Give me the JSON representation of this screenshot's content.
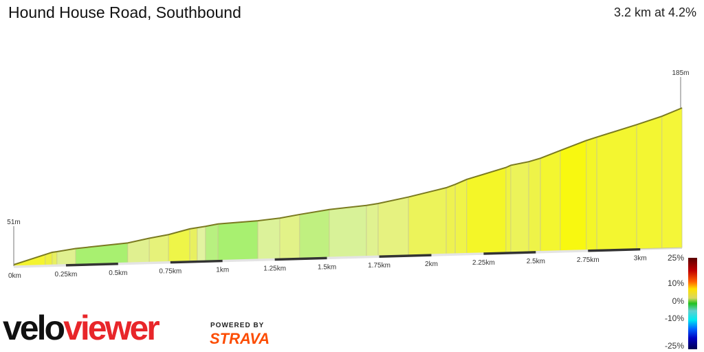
{
  "header": {
    "title": "Hound House Road, Southbound",
    "summary": "3.2 km at 4.2%"
  },
  "chart_data": {
    "type": "area",
    "title": "Hound House Road, Southbound",
    "xlabel": "",
    "ylabel": "",
    "xlim": [
      0,
      3.2
    ],
    "ylim": [
      51,
      185
    ],
    "start_label": "51m",
    "end_label": "185m",
    "x_ticks": [
      {
        "v": 0,
        "label": "0km"
      },
      {
        "v": 0.25,
        "label": "0.25km"
      },
      {
        "v": 0.5,
        "label": "0.5km"
      },
      {
        "v": 0.75,
        "label": "0.75km"
      },
      {
        "v": 1,
        "label": "1km"
      },
      {
        "v": 1.25,
        "label": "1.25km"
      },
      {
        "v": 1.5,
        "label": "1.5km"
      },
      {
        "v": 1.75,
        "label": "1.75km"
      },
      {
        "v": 2,
        "label": "2km"
      },
      {
        "v": 2.25,
        "label": "2.25km"
      },
      {
        "v": 2.5,
        "label": "2.5km"
      },
      {
        "v": 2.75,
        "label": "2.75km"
      },
      {
        "v": 3,
        "label": "3km"
      }
    ],
    "points_km": [
      0,
      0.151,
      0.184,
      0.207,
      0.296,
      0.546,
      0.649,
      0.741,
      0.843,
      0.879,
      0.918,
      0.978,
      1.169,
      1.274,
      1.369,
      1.511,
      1.689,
      1.745,
      1.89,
      2.071,
      2.114,
      2.169,
      2.357,
      2.38,
      2.466,
      2.522,
      2.617,
      2.742,
      2.792,
      2.983,
      3.104,
      3.2
    ],
    "elevation_m": [
      51,
      60,
      62,
      62.5,
      65,
      69,
      73,
      76,
      81,
      82,
      83,
      85,
      87,
      89,
      92,
      96,
      99,
      100.5,
      106,
      114,
      117,
      121.5,
      132,
      134,
      137,
      140,
      147,
      156,
      159,
      170,
      177.5,
      185
    ],
    "segment_colors": [
      "#f4f430",
      "#eef040",
      "#e8f060",
      "#e0f090",
      "#a8f070",
      "#e0f090",
      "#e6f27a",
      "#eef548",
      "#e8f060",
      "#e2f3a0",
      "#b8f080",
      "#a8f070",
      "#dcf29a",
      "#e2f288",
      "#c0f080",
      "#d8f298",
      "#e0f290",
      "#e6f280",
      "#ecf35a",
      "#eef250",
      "#f0f448",
      "#f4f628",
      "#f0f440",
      "#ecf35a",
      "#eef348",
      "#f3f630",
      "#f8f810",
      "#f4f628",
      "#f3f630",
      "#f3f632",
      "#f4f638"
    ],
    "legend": {
      "labels": [
        "25%",
        "10%",
        "0%",
        "-10%",
        "-25%"
      ],
      "values": [
        25,
        10,
        0,
        -10,
        -25
      ],
      "colors": [
        {
          "v": 25,
          "c": "#5a0000"
        },
        {
          "v": 18,
          "c": "#c00000"
        },
        {
          "v": 12,
          "c": "#ff6000"
        },
        {
          "v": 8,
          "c": "#ffe000"
        },
        {
          "v": 3,
          "c": "#d8d860"
        },
        {
          "v": 0,
          "c": "#20c020"
        },
        {
          "v": -4,
          "c": "#60d0d0"
        },
        {
          "v": -9,
          "c": "#00e8f0"
        },
        {
          "v": -14,
          "c": "#0060ff"
        },
        {
          "v": -19,
          "c": "#0000c0"
        },
        {
          "v": -25,
          "c": "#000050"
        }
      ]
    }
  },
  "branding": {
    "logo_part1": "velo",
    "logo_part2": "viewer",
    "powered_by": "POWERED BY",
    "strava": "STRAVA"
  }
}
